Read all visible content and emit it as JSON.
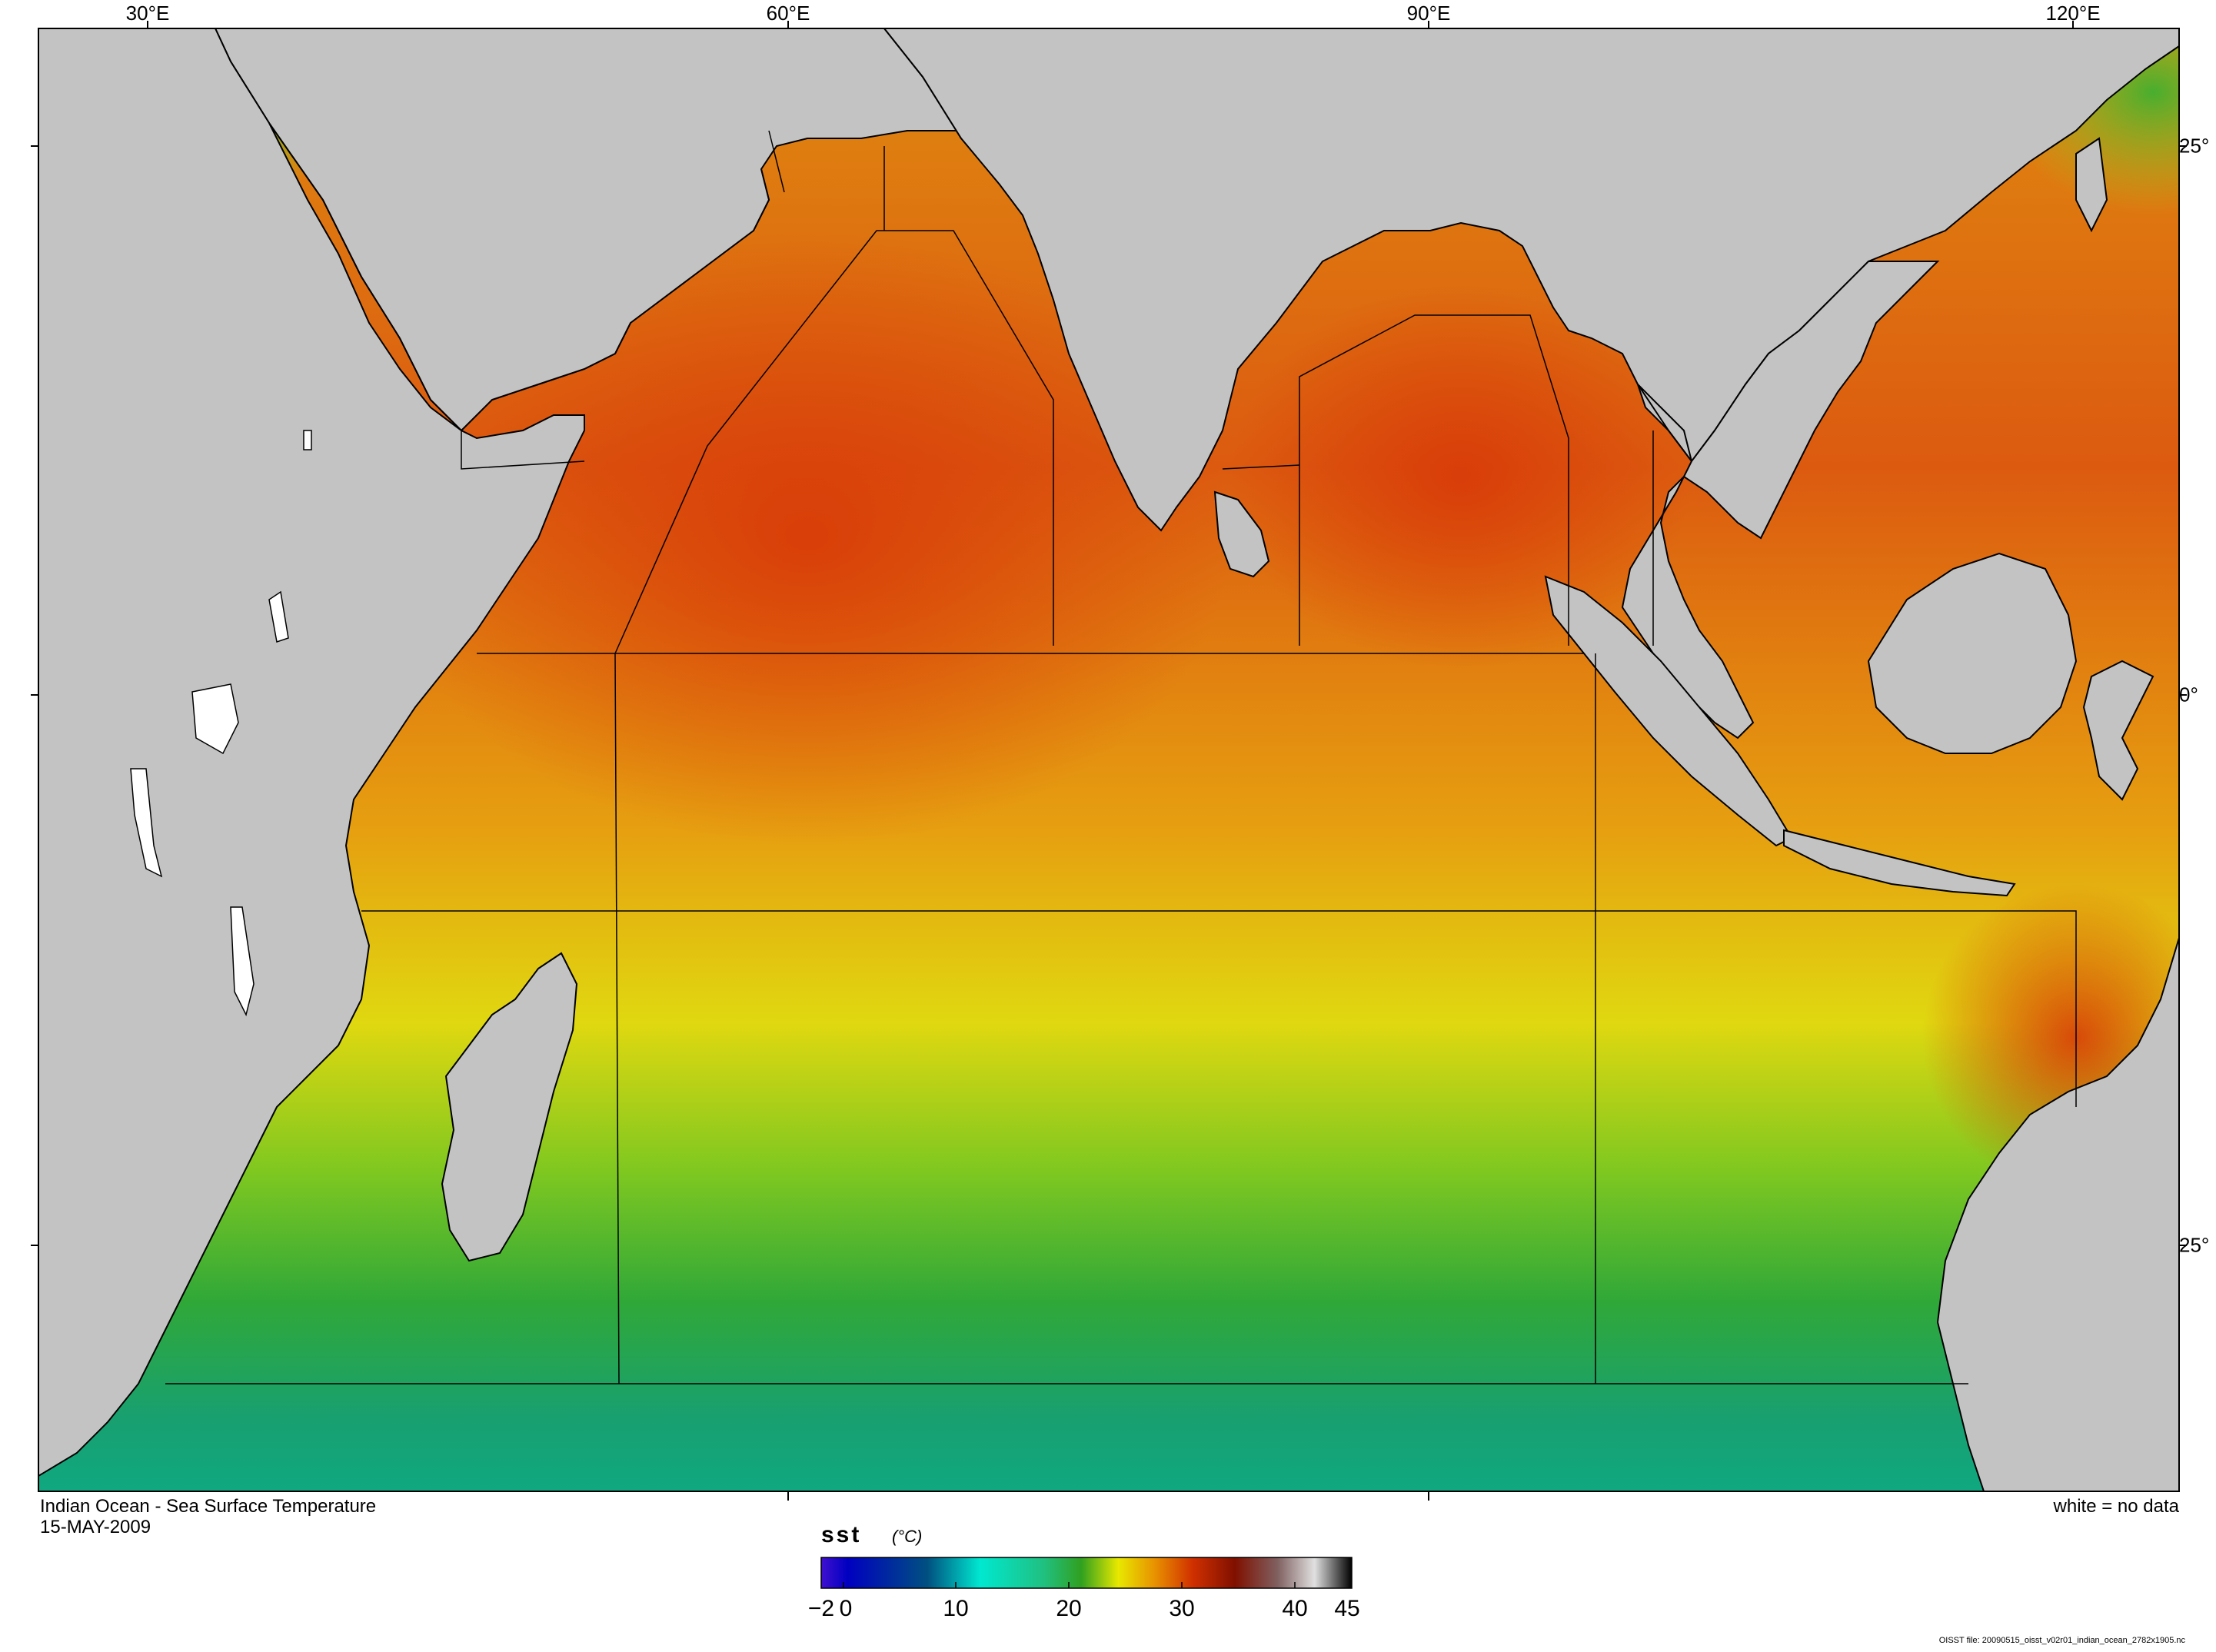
{
  "map": {
    "title": "Indian Ocean - Sea Surface Temperature",
    "date": "15-MAY-2009",
    "legend_note": "white = no data",
    "source_note": "OISST file: 20090515_oisst_v02r01_indian_ocean_2782x1905.nc",
    "longitude_labels": [
      "30°E",
      "60°E",
      "90°E",
      "120°E"
    ],
    "latitude_labels": [
      "25°",
      "0°",
      "25°"
    ],
    "land_color": "#c3c3c3",
    "coast_color": "#000000"
  },
  "colorbar": {
    "variable": "sst",
    "units": "(°C)",
    "tick_labels": [
      "−2",
      "0",
      "10",
      "20",
      "30",
      "40",
      "45"
    ],
    "range": [
      -2,
      45
    ],
    "stops": [
      "#4010d0",
      "#0000c0",
      "#005080",
      "#00c0a0",
      "#00e8d0",
      "#20c080",
      "#30a020",
      "#e8e800",
      "#e89000",
      "#d03000",
      "#801000",
      "#806060",
      "#e0e0e0",
      "#000000"
    ]
  }
}
